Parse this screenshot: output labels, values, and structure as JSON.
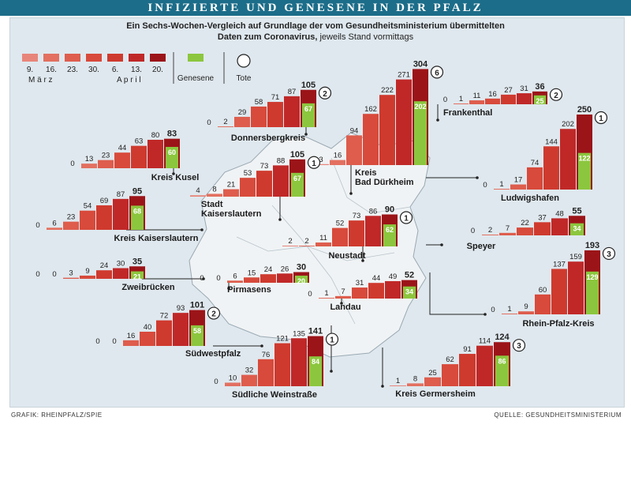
{
  "header": {
    "title": "INFIZIERTE UND GENESENE IN DER PFALZ",
    "subtitle_bold": "Ein Sechs-Wochen-Vergleich auf Grundlage der vom Gesundheitsministerium übermittelten Daten zum Coronavirus,",
    "subtitle_rest": "jeweils Stand vormittags"
  },
  "legend": {
    "dates": [
      "9.",
      "16.",
      "23.",
      "30.",
      "6.",
      "13.",
      "20."
    ],
    "month_march": "M ä r z",
    "month_april": "A p r i l",
    "recovered_label": "Genesene",
    "deaths_label": "Tote"
  },
  "footer": {
    "left": "GRAFIK: RHEINPFALZ/SPIE",
    "right": "QUELLE: GESUNDHEITSMINISTERIUM"
  },
  "colors": {
    "shades": [
      "#e8857a",
      "#e37060",
      "#de5d4d",
      "#d84a3b",
      "#cf3a2e",
      "#c02828",
      "#9b1418"
    ],
    "recovered": "#8cc63e",
    "title_bg": "#1c6d89"
  },
  "chart_data": {
    "type": "bar",
    "categories": [
      "9. März",
      "16. März",
      "23. März",
      "30. März",
      "6. April",
      "13. April",
      "20. April"
    ],
    "districts": [
      {
        "name": "Donnersbergkreis",
        "infected": [
          0,
          2,
          29,
          58,
          71,
          87,
          105
        ],
        "recovered": 67,
        "deaths": 2
      },
      {
        "name": "Kreis Bad Dürkheim",
        "infected": [
          3,
          16,
          94,
          162,
          222,
          271,
          304
        ],
        "recovered": 202,
        "deaths": 6
      },
      {
        "name": "Frankenthal",
        "infected": [
          0,
          1,
          11,
          16,
          27,
          31,
          36
        ],
        "recovered": 25,
        "deaths": 2
      },
      {
        "name": "Kreis Kusel",
        "infected": [
          0,
          13,
          23,
          44,
          63,
          80,
          83
        ],
        "recovered": 60,
        "deaths": null
      },
      {
        "name": "Stadt Kaiserslautern",
        "infected": [
          4,
          8,
          21,
          53,
          73,
          88,
          105
        ],
        "recovered": 67,
        "deaths": 1
      },
      {
        "name": "Ludwigshafen",
        "infected": [
          0,
          1,
          17,
          74,
          144,
          202,
          250
        ],
        "recovered": 122,
        "deaths": 1
      },
      {
        "name": "Kreis Kaiserslautern",
        "infected": [
          0,
          6,
          23,
          54,
          69,
          87,
          95
        ],
        "recovered": 68,
        "deaths": null
      },
      {
        "name": "Neustadt",
        "infected": [
          2,
          2,
          11,
          52,
          73,
          86,
          90
        ],
        "recovered": 62,
        "deaths": 1
      },
      {
        "name": "Speyer",
        "infected": [
          0,
          2,
          7,
          22,
          37,
          48,
          55
        ],
        "recovered": 34,
        "deaths": null
      },
      {
        "name": "Zweibrücken",
        "infected": [
          0,
          0,
          3,
          9,
          24,
          30,
          35
        ],
        "recovered": 21,
        "deaths": null
      },
      {
        "name": "Pirmasens",
        "infected": [
          0,
          0,
          6,
          15,
          24,
          26,
          30
        ],
        "recovered": 20,
        "deaths": null
      },
      {
        "name": "Landau",
        "infected": [
          0,
          1,
          7,
          31,
          44,
          49,
          52
        ],
        "recovered": 34,
        "deaths": null
      },
      {
        "name": "Rhein-Pfalz-Kreis",
        "infected": [
          0,
          1,
          9,
          60,
          137,
          159,
          193
        ],
        "recovered": 129,
        "deaths": 3
      },
      {
        "name": "Südwestpfalz",
        "infected": [
          0,
          0,
          16,
          40,
          72,
          93,
          101
        ],
        "recovered": 58,
        "deaths": 2
      },
      {
        "name": "Südliche Weinstraße",
        "infected": [
          0,
          10,
          32,
          76,
          121,
          135,
          141
        ],
        "recovered": 84,
        "deaths": 1
      },
      {
        "name": "Kreis Germersheim",
        "infected": [
          1,
          8,
          25,
          62,
          91,
          114,
          124
        ],
        "recovered": 86,
        "deaths": 3
      }
    ]
  }
}
